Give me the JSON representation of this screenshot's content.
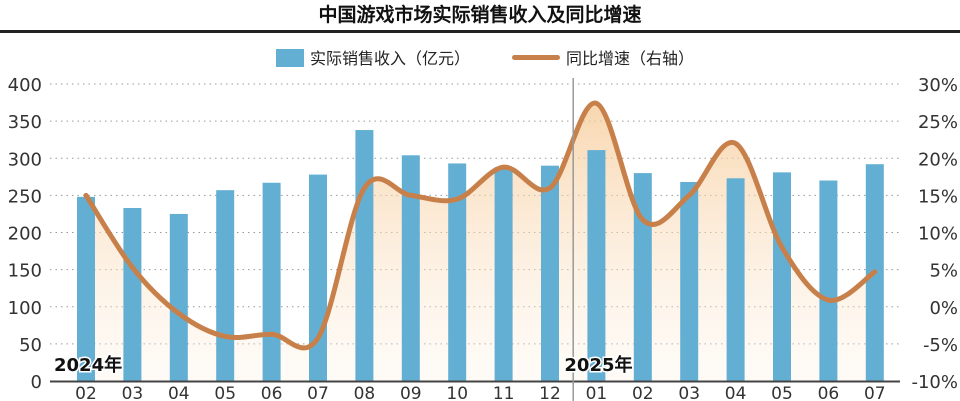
{
  "chart_data": {
    "type": "bar+line",
    "title": "中国游戏市场实际销售收入及同比增速",
    "categories": [
      "02",
      "03",
      "04",
      "05",
      "06",
      "07",
      "08",
      "09",
      "10",
      "11",
      "12",
      "01",
      "02",
      "03",
      "04",
      "05",
      "06",
      "07"
    ],
    "year_labels": [
      {
        "label": "2024年",
        "index": 0
      },
      {
        "label": "2025年",
        "index": 11
      }
    ],
    "series": [
      {
        "name": "实际销售收入（亿元）",
        "type": "bar",
        "axis": "left",
        "color": "#63afd4",
        "values": [
          248,
          233,
          225,
          257,
          267,
          278,
          338,
          304,
          293,
          288,
          290,
          311,
          280,
          268,
          273,
          281,
          270,
          292
        ]
      },
      {
        "name": "同比增速（右轴）",
        "type": "line",
        "axis": "right",
        "color": "#c8804a",
        "values": [
          15,
          5.3,
          -0.9,
          -4,
          -3.7,
          -4.2,
          16,
          15,
          14.5,
          18.8,
          16,
          27.4,
          11.7,
          15,
          22,
          8,
          0.9,
          4.7
        ]
      }
    ],
    "left_axis": {
      "ylim": [
        0,
        400
      ],
      "ticks": [
        "0",
        "50",
        "100",
        "150",
        "200",
        "250",
        "300",
        "350",
        "400"
      ]
    },
    "right_axis": {
      "ylim": [
        -10,
        30
      ],
      "ticks": [
        "-10%",
        "-5%",
        "0%",
        "5%",
        "10%",
        "15%",
        "20%",
        "25%",
        "30%"
      ]
    },
    "grid": "dotted horizontal",
    "legend_position": "top"
  }
}
